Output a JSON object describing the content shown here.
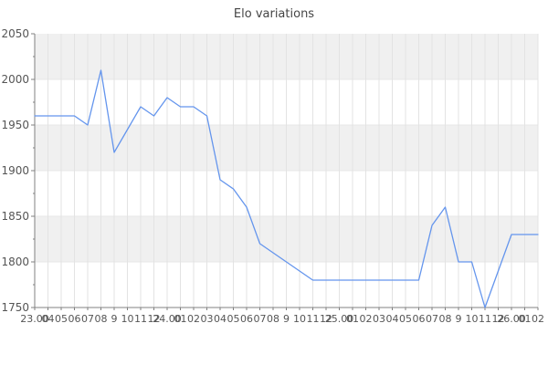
{
  "title": "Elo variations",
  "chart_data": {
    "type": "line",
    "title": "Elo variations",
    "xlabel": "",
    "ylabel": "",
    "ylim": [
      1750,
      2050
    ],
    "y_tick_step": 50,
    "y_minor_tick_step": 25,
    "y_tick_labels": [
      "2050",
      "2000",
      "1950",
      "1900",
      "1850",
      "1800",
      "1750"
    ],
    "x_tick_labels": [
      "23.00",
      "04",
      "05",
      "06",
      "07",
      "08",
      "9",
      "10",
      "11",
      "12",
      "24.00",
      "01",
      "02",
      "03",
      "04",
      "05",
      "06",
      "07",
      "08",
      "9",
      "10",
      "11",
      "12",
      "25.00",
      "01",
      "02",
      "03",
      "04",
      "05",
      "06",
      "07",
      "08",
      "9",
      "10",
      "11",
      "12",
      "26.00",
      "01",
      "02"
    ],
    "values": [
      1960,
      1960,
      1960,
      1960,
      1950,
      2010,
      1920,
      1945,
      1970,
      1960,
      1980,
      1970,
      1970,
      1960,
      1890,
      1880,
      1860,
      1820,
      1810,
      1800,
      1790,
      1780,
      1780,
      1780,
      1780,
      1780,
      1780,
      1780,
      1780,
      1780,
      1840,
      1860,
      1800,
      1800,
      1750,
      1790,
      1830,
      1830,
      1830
    ],
    "grid": true,
    "legend_position": "none",
    "line_color": "#6495ed",
    "band_color": "#f0f0f0",
    "band_alt_color": "#ffffff",
    "h_grid_color": "#e7e7e7",
    "v_grid_color": "#e3e3e3",
    "axis_color": "#808080",
    "tick_label_color": "#555555",
    "title_color": "#454545"
  }
}
